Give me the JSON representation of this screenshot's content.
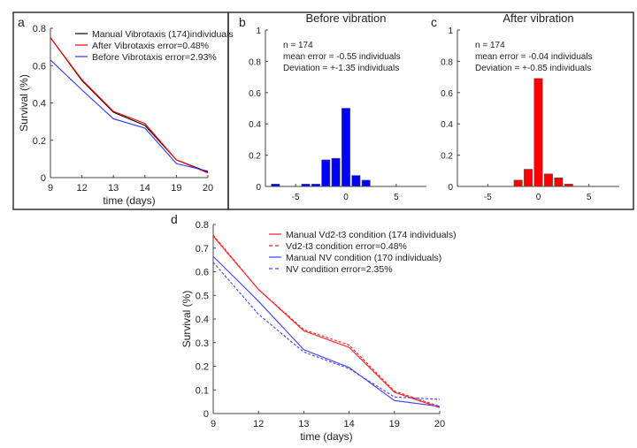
{
  "chart_data": [
    {
      "panel": "a",
      "type": "line",
      "title": "",
      "xlabel": "time (days)",
      "ylabel": "Survival (%)",
      "categories": [
        "9",
        "12",
        "13",
        "14",
        "19",
        "20"
      ],
      "ylim": [
        0,
        0.8
      ],
      "yticks": [
        "0",
        "0.2",
        "0.4",
        "0.6",
        "0.8"
      ],
      "legend_placement": "top-right",
      "series": [
        {
          "name": "Manual Vibrotaxis (174)individuals",
          "color": "#000000",
          "dash": false,
          "values": [
            0.75,
            0.52,
            0.35,
            0.28,
            0.095,
            0.03
          ]
        },
        {
          "name": "After Vibrotaxis error=0.48%",
          "color": "#ff0000",
          "dash": false,
          "values": [
            0.75,
            0.525,
            0.355,
            0.29,
            0.095,
            0.025
          ]
        },
        {
          "name": "Before Vibrotaxis error=2.93%",
          "color": "#3333ff",
          "dash": false,
          "values": [
            0.63,
            0.47,
            0.315,
            0.265,
            0.075,
            0.035
          ]
        }
      ]
    },
    {
      "panel": "b",
      "type": "bar",
      "title": "Before vibration",
      "color": "#0000ff",
      "xlim": [
        -8,
        8
      ],
      "xticks": [
        "-5",
        "0",
        "5"
      ],
      "ylim": [
        0,
        1
      ],
      "yticks": [
        "0",
        "0.2",
        "0.4",
        "0.6",
        "0.8",
        "1"
      ],
      "annotations": [
        "n = 174",
        "mean error  = -0.55 individuals",
        "Deviation =    +-1.35 individuals"
      ],
      "x": [
        -7,
        -4,
        -3,
        -2,
        -1,
        0,
        1,
        2
      ],
      "values": [
        0.015,
        0.015,
        0.015,
        0.17,
        0.18,
        0.5,
        0.07,
        0.04
      ]
    },
    {
      "panel": "c",
      "type": "bar",
      "title": "After vibration",
      "color": "#ff0000",
      "xlim": [
        -8,
        8
      ],
      "xticks": [
        "-5",
        "0",
        "5"
      ],
      "ylim": [
        0,
        1
      ],
      "yticks": [
        "0",
        "0.2",
        "0.4",
        "0.6",
        "0.8",
        "1"
      ],
      "annotations": [
        "n = 174",
        "mean error  = -0.04 individuals",
        "Deviation =    +-0.85 individuals"
      ],
      "x": [
        -2,
        -1,
        0,
        1,
        2,
        3
      ],
      "values": [
        0.04,
        0.11,
        0.69,
        0.08,
        0.055,
        0.015
      ]
    },
    {
      "panel": "d",
      "type": "line",
      "title": "",
      "xlabel": "time (days)",
      "ylabel": "Survival (%)",
      "categories": [
        "9",
        "12",
        "13",
        "14",
        "19",
        "20"
      ],
      "ylim": [
        0,
        0.8
      ],
      "yticks": [
        "0",
        "0.1",
        "0.2",
        "0.3",
        "0.4",
        "0.5",
        "0.6",
        "0.7",
        "0.8"
      ],
      "legend_placement": "top-right",
      "series": [
        {
          "name": "Manual Vd2-t3 condition (174 individuals)",
          "color": "#ff2020",
          "dash": false,
          "values": [
            0.75,
            0.525,
            0.35,
            0.28,
            0.09,
            0.025
          ]
        },
        {
          "name": "Vd2-t3 condition error=0.48%",
          "color": "#ff2020",
          "dash": true,
          "values": [
            0.755,
            0.525,
            0.355,
            0.29,
            0.095,
            0.03
          ]
        },
        {
          "name": "Manual NV condition (170 individuals)",
          "color": "#4040ff",
          "dash": false,
          "values": [
            0.665,
            0.475,
            0.27,
            0.195,
            0.055,
            0.03
          ]
        },
        {
          "name": "NV condition error=2.35%",
          "color": "#4040ff",
          "dash": true,
          "values": [
            0.64,
            0.42,
            0.26,
            0.19,
            0.07,
            0.06
          ]
        }
      ]
    }
  ]
}
